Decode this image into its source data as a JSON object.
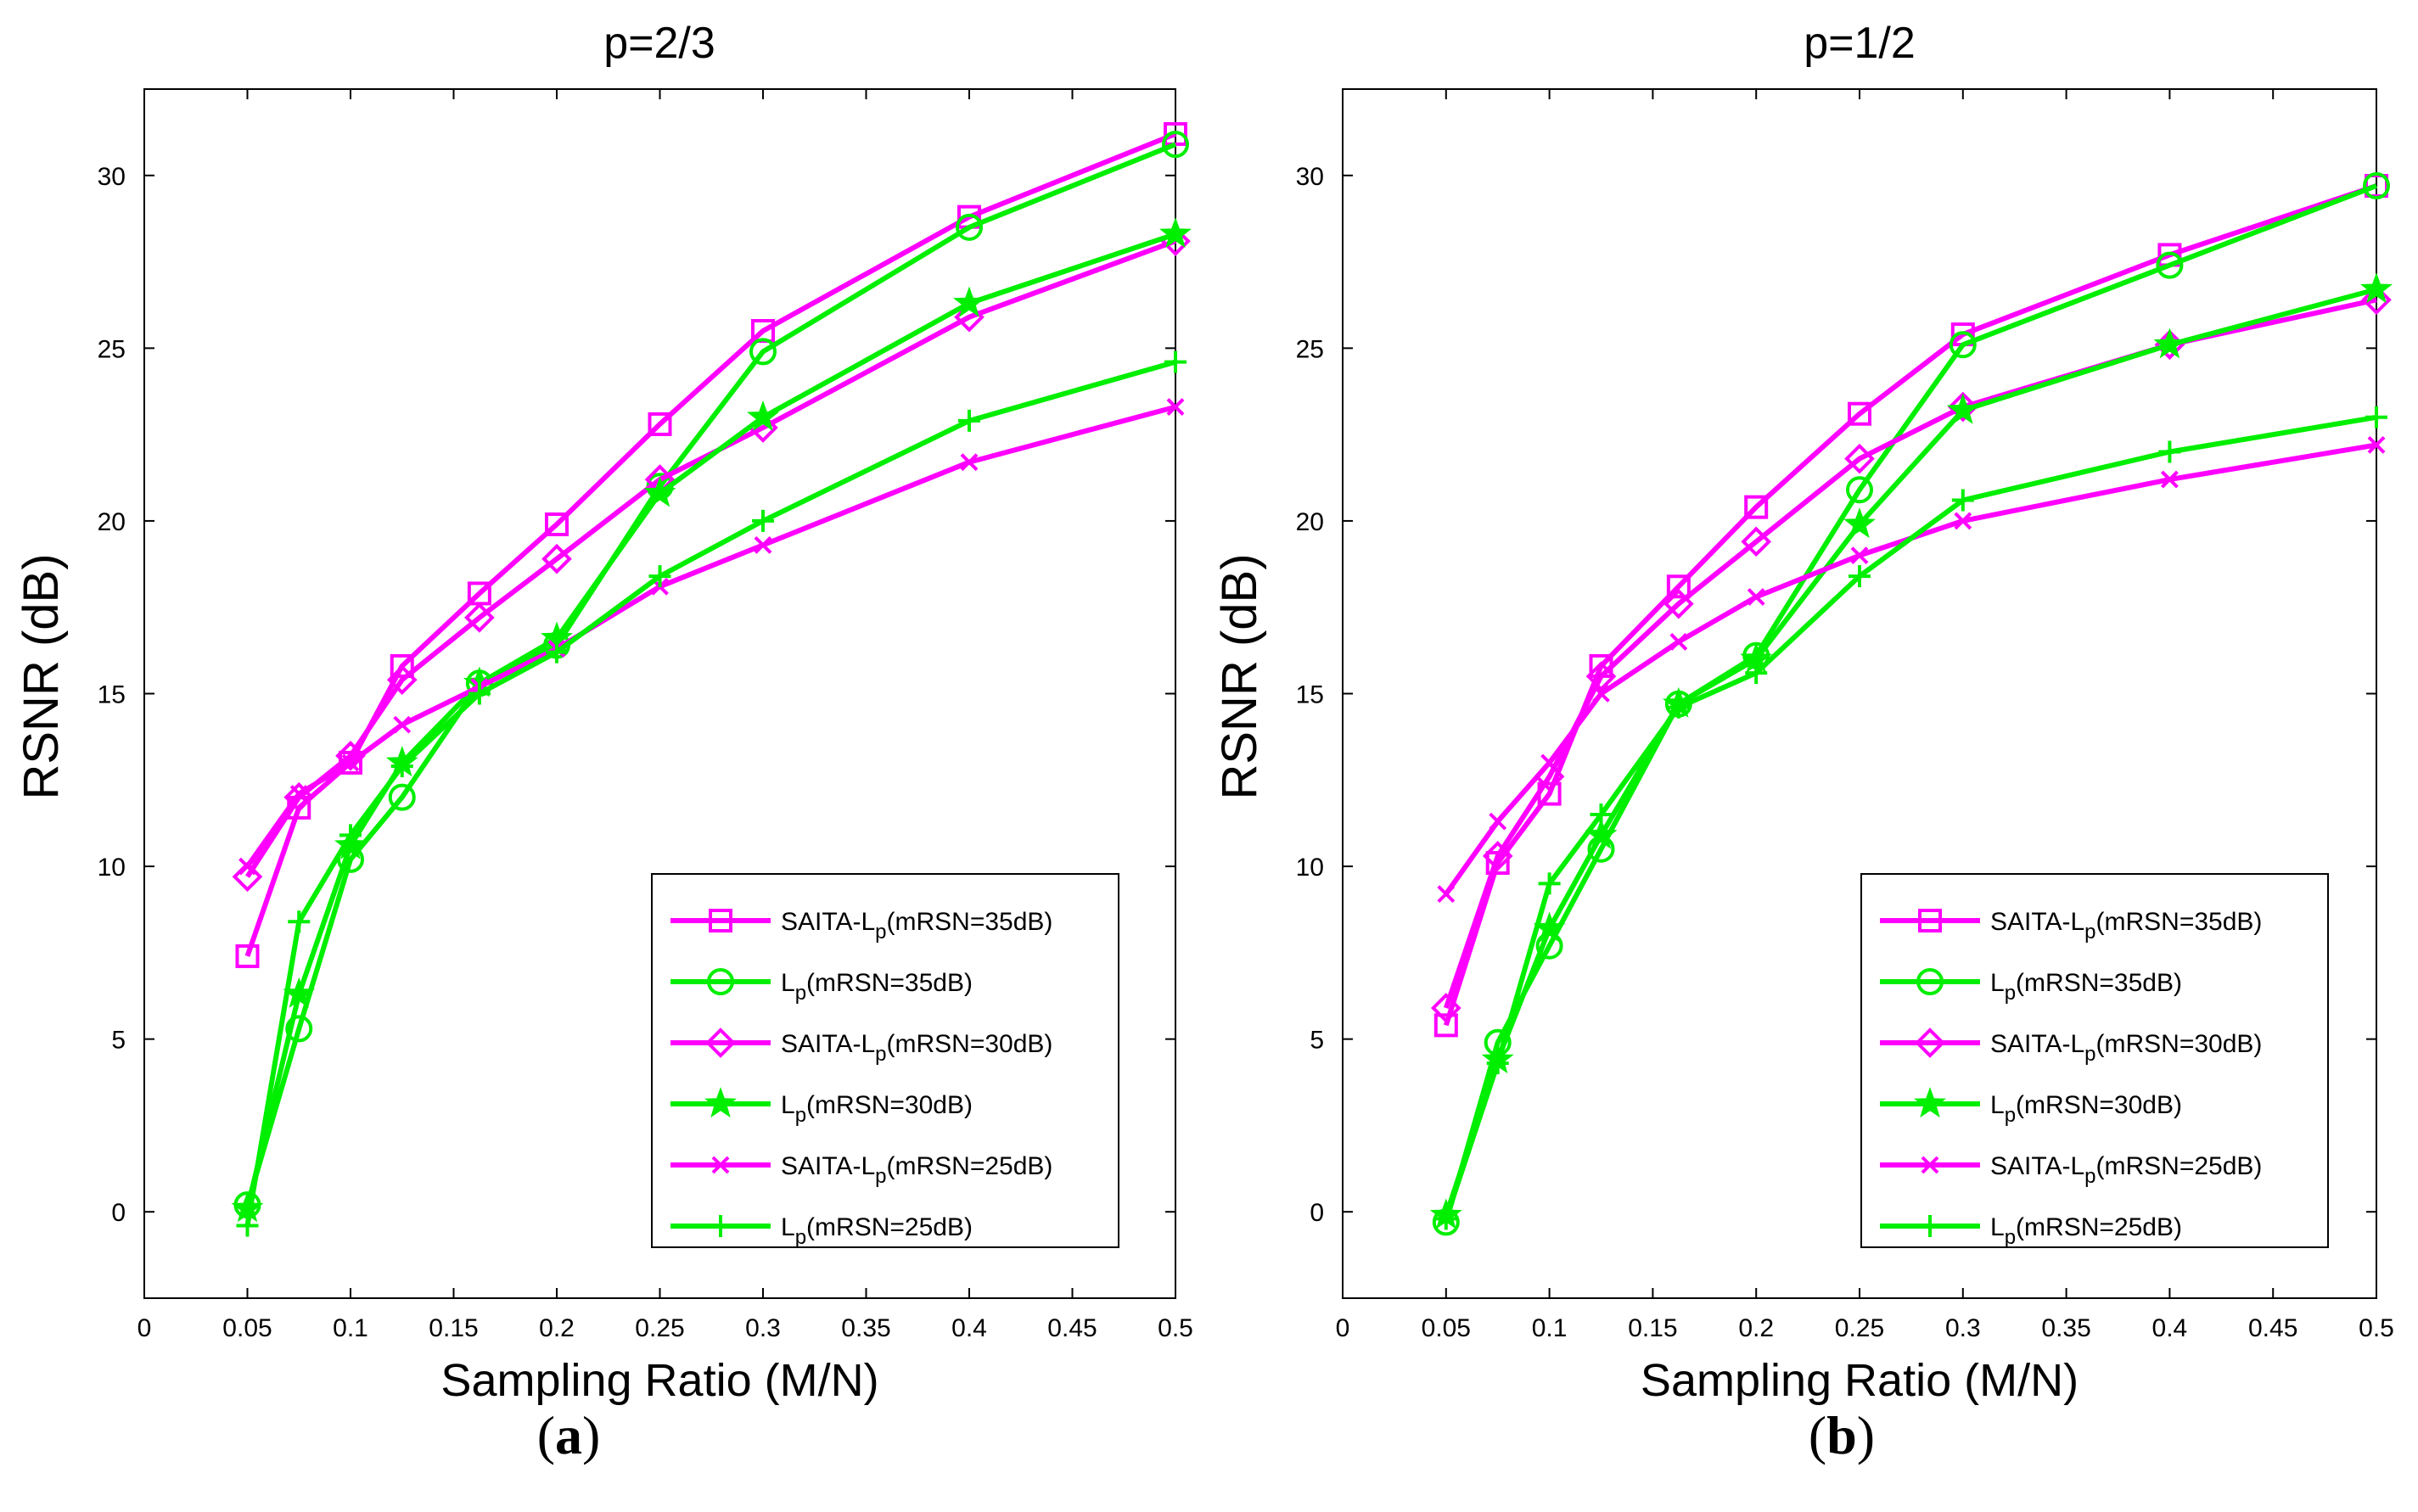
{
  "chart_data": [
    {
      "type": "line",
      "title": "p=2/3",
      "xlabel": "Sampling Ratio (M/N)",
      "ylabel": "RSNR (dB)",
      "panel_label": "a",
      "xlim": [
        0,
        0.5
      ],
      "ylim": [
        -2.5,
        32.5
      ],
      "xticks": [
        "0",
        "0.05",
        "0.1",
        "0.15",
        "0.2",
        "0.25",
        "0.3",
        "0.35",
        "0.4",
        "0.45",
        "0.5"
      ],
      "yticks": [
        "0",
        "5",
        "10",
        "15",
        "20",
        "25",
        "30"
      ],
      "grid": false,
      "legend_position": "bottom-right",
      "x": [
        0.05,
        0.075,
        0.1,
        0.125,
        0.1625,
        0.2,
        0.25,
        0.3,
        0.4,
        0.5
      ],
      "series": [
        {
          "name_main": "SAITA-L",
          "name_sub": "p",
          "name_rest": "(mRSN=35dB)",
          "color": "#ff00ff",
          "marker": "square",
          "values": [
            7.4,
            11.7,
            13.0,
            15.8,
            17.9,
            19.9,
            22.8,
            25.5,
            28.8,
            31.2
          ]
        },
        {
          "name_main": "L",
          "name_sub": "p",
          "name_rest": "(mRSN=35dB)",
          "color": "#00ee00",
          "marker": "circle",
          "values": [
            0.2,
            5.3,
            10.2,
            12.0,
            15.3,
            16.4,
            21.0,
            24.9,
            28.5,
            30.9
          ]
        },
        {
          "name_main": "SAITA-L",
          "name_sub": "p",
          "name_rest": "(mRSN=30dB)",
          "color": "#ff00ff",
          "marker": "diamond",
          "values": [
            9.7,
            12.0,
            13.2,
            15.4,
            17.2,
            18.9,
            21.2,
            22.7,
            25.9,
            28.1
          ]
        },
        {
          "name_main": "L",
          "name_sub": "p",
          "name_rest": "(mRSN=30dB)",
          "color": "#00ee00",
          "marker": "star",
          "values": [
            0.1,
            6.3,
            10.6,
            13.0,
            15.3,
            16.6,
            20.8,
            23.0,
            26.3,
            28.3
          ]
        },
        {
          "name_main": "SAITA-L",
          "name_sub": "p",
          "name_rest": "(mRSN=25dB)",
          "color": "#ff00ff",
          "marker": "x",
          "values": [
            10.0,
            12.1,
            13.0,
            14.1,
            15.2,
            16.3,
            18.1,
            19.3,
            21.7,
            23.3
          ]
        },
        {
          "name_main": "L",
          "name_sub": "p",
          "name_rest": "(mRSN=25dB)",
          "color": "#00ee00",
          "marker": "plus",
          "values": [
            -0.4,
            8.4,
            10.9,
            12.9,
            15.0,
            16.2,
            18.4,
            20.0,
            22.9,
            24.6
          ]
        }
      ]
    },
    {
      "type": "line",
      "title": "p=1/2",
      "xlabel": "Sampling Ratio (M/N)",
      "ylabel": "RSNR (dB)",
      "panel_label": "b",
      "xlim": [
        0,
        0.5
      ],
      "ylim": [
        -2.5,
        32.5
      ],
      "xticks": [
        "0",
        "0.05",
        "0.1",
        "0.15",
        "0.2",
        "0.25",
        "0.3",
        "0.35",
        "0.4",
        "0.45",
        "0.5"
      ],
      "yticks": [
        "0",
        "5",
        "10",
        "15",
        "20",
        "25",
        "30"
      ],
      "grid": false,
      "legend_position": "bottom-right",
      "x": [
        0.05,
        0.075,
        0.1,
        0.125,
        0.1625,
        0.2,
        0.25,
        0.3,
        0.4,
        0.5
      ],
      "series": [
        {
          "name_main": "SAITA-L",
          "name_sub": "p",
          "name_rest": "(mRSN=35dB)",
          "color": "#ff00ff",
          "marker": "square",
          "values": [
            5.4,
            10.1,
            12.1,
            15.8,
            18.1,
            20.4,
            23.1,
            25.4,
            27.7,
            29.7
          ]
        },
        {
          "name_main": "L",
          "name_sub": "p",
          "name_rest": "(mRSN=35dB)",
          "color": "#00ee00",
          "marker": "circle",
          "values": [
            -0.3,
            4.9,
            7.7,
            10.5,
            14.7,
            16.1,
            20.9,
            25.1,
            27.4,
            29.7
          ]
        },
        {
          "name_main": "SAITA-L",
          "name_sub": "p",
          "name_rest": "(mRSN=30dB)",
          "color": "#ff00ff",
          "marker": "diamond",
          "values": [
            5.9,
            10.3,
            12.6,
            15.5,
            17.6,
            19.4,
            21.8,
            23.3,
            25.1,
            26.4
          ]
        },
        {
          "name_main": "L",
          "name_sub": "p",
          "name_rest": "(mRSN=30dB)",
          "color": "#00ee00",
          "marker": "star",
          "values": [
            -0.1,
            4.4,
            8.2,
            10.9,
            14.7,
            16.0,
            19.9,
            23.2,
            25.1,
            26.7
          ]
        },
        {
          "name_main": "SAITA-L",
          "name_sub": "p",
          "name_rest": "(mRSN=25dB)",
          "color": "#ff00ff",
          "marker": "x",
          "values": [
            9.2,
            11.3,
            13.0,
            15.0,
            16.5,
            17.8,
            19.0,
            20.0,
            21.2,
            22.2
          ]
        },
        {
          "name_main": "L",
          "name_sub": "p",
          "name_rest": "(mRSN=25dB)",
          "color": "#00ee00",
          "marker": "plus",
          "values": [
            -0.2,
            4.3,
            9.5,
            11.5,
            14.6,
            15.6,
            18.4,
            20.6,
            22.0,
            23.0
          ]
        }
      ]
    }
  ]
}
